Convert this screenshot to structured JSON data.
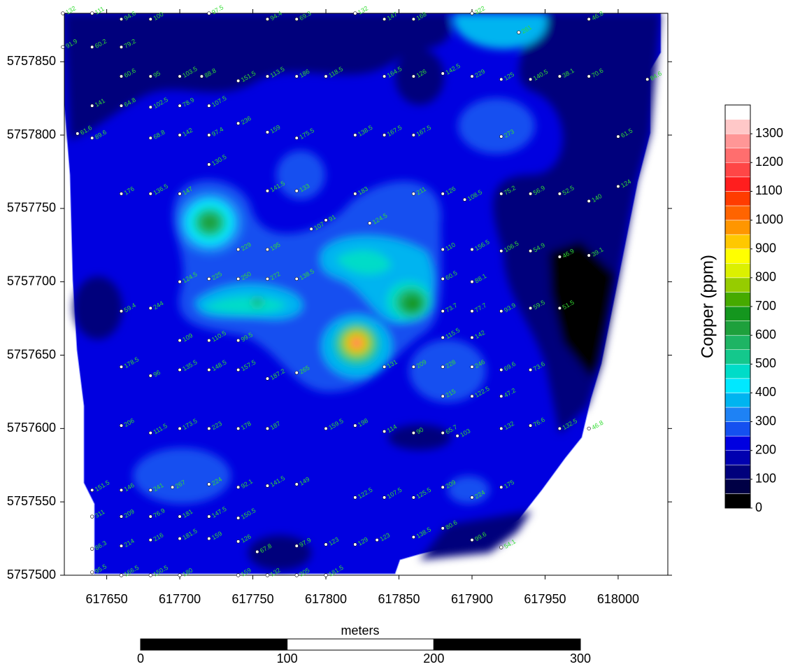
{
  "map": {
    "type": "contour",
    "xlim": [
      617621,
      618034
    ],
    "ylim": [
      5757500,
      5757883
    ],
    "xticks": [
      617650,
      617700,
      617750,
      617800,
      617850,
      617900,
      617950,
      618000
    ],
    "yticks": [
      5757500,
      5757550,
      5757600,
      5757650,
      5757700,
      5757750,
      5757800,
      5757850
    ],
    "colorbar": {
      "label": "Copper (ppm)",
      "lim": [
        0,
        1400
      ],
      "levels": [
        0,
        50,
        100,
        150,
        200,
        250,
        300,
        350,
        400,
        450,
        500,
        550,
        600,
        650,
        700,
        750,
        800,
        850,
        900,
        950,
        1000,
        1050,
        1100,
        1150,
        1200,
        1250,
        1300,
        1350,
        1400
      ],
      "colors": [
        "#000000",
        "#000045",
        "#00007c",
        "#0000b0",
        "#0000e0",
        "#1450f0",
        "#1e82f5",
        "#00b4f0",
        "#00e8ff",
        "#00dcc8",
        "#14c88c",
        "#1eb464",
        "#1ea03c",
        "#14961e",
        "#46aa00",
        "#96cc00",
        "#dcf000",
        "#ffff00",
        "#ffc800",
        "#ff9600",
        "#ff6400",
        "#ff3c00",
        "#ff1e1e",
        "#ff4646",
        "#ff6e6e",
        "#ff9696",
        "#ffc8c8",
        "#ffffff"
      ],
      "ticks": [
        0,
        100,
        200,
        300,
        400,
        500,
        600,
        700,
        800,
        900,
        1000,
        1100,
        1200,
        1300
      ]
    },
    "scale_bar": {
      "label": "meters",
      "lim": [
        0,
        300
      ],
      "ticks": [
        0,
        100,
        200,
        300
      ]
    },
    "samples": [
      {
        "x": 617620,
        "y": 5757883,
        "value": 132
      },
      {
        "x": 617640,
        "y": 5757883,
        "value": 111
      },
      {
        "x": 617720,
        "y": 5757883,
        "value": 97.5
      },
      {
        "x": 617820,
        "y": 5757883,
        "value": 132
      },
      {
        "x": 617900,
        "y": 5757883,
        "value": 322
      },
      {
        "x": 617660,
        "y": 5757879,
        "value": 94.6
      },
      {
        "x": 617680,
        "y": 5757879,
        "value": 100
      },
      {
        "x": 617760,
        "y": 5757879,
        "value": 94.4
      },
      {
        "x": 617780,
        "y": 5757879,
        "value": 69.3
      },
      {
        "x": 617840,
        "y": 5757879,
        "value": 147
      },
      {
        "x": 617860,
        "y": 5757879,
        "value": 168
      },
      {
        "x": 617980,
        "y": 5757879,
        "value": 46.8
      },
      {
        "x": 617932,
        "y": 5757870,
        "value": 261
      },
      {
        "x": 617620,
        "y": 5757860,
        "value": 91.9
      },
      {
        "x": 617640,
        "y": 5757860,
        "value": 60.2
      },
      {
        "x": 617660,
        "y": 5757860,
        "value": 79.2
      },
      {
        "x": 617660,
        "y": 5757840,
        "value": 60.6
      },
      {
        "x": 617680,
        "y": 5757840,
        "value": 95
      },
      {
        "x": 617700,
        "y": 5757840,
        "value": 103.5
      },
      {
        "x": 617715,
        "y": 5757840,
        "value": 88.8
      },
      {
        "x": 617740,
        "y": 5757837,
        "value": 151.5
      },
      {
        "x": 617760,
        "y": 5757840,
        "value": 113.5
      },
      {
        "x": 617780,
        "y": 5757840,
        "value": 186
      },
      {
        "x": 617800,
        "y": 5757840,
        "value": 118.5
      },
      {
        "x": 617840,
        "y": 5757840,
        "value": 164.5
      },
      {
        "x": 617860,
        "y": 5757840,
        "value": 126
      },
      {
        "x": 617880,
        "y": 5757842,
        "value": 142.5
      },
      {
        "x": 617900,
        "y": 5757840,
        "value": 229
      },
      {
        "x": 617920,
        "y": 5757838,
        "value": 125
      },
      {
        "x": 617940,
        "y": 5757838,
        "value": 140.5
      },
      {
        "x": 617960,
        "y": 5757840,
        "value": 38.1
      },
      {
        "x": 617980,
        "y": 5757840,
        "value": 70.6
      },
      {
        "x": 618020,
        "y": 5757838,
        "value": 84.6
      },
      {
        "x": 617640,
        "y": 5757820,
        "value": 141
      },
      {
        "x": 617660,
        "y": 5757820,
        "value": 64.8
      },
      {
        "x": 617680,
        "y": 5757819,
        "value": 102.5
      },
      {
        "x": 617700,
        "y": 5757820,
        "value": 78.9
      },
      {
        "x": 617720,
        "y": 5757820,
        "value": 107.5
      },
      {
        "x": 617740,
        "y": 5757808,
        "value": 236
      },
      {
        "x": 617630,
        "y": 5757801,
        "value": 61.6
      },
      {
        "x": 617640,
        "y": 5757798,
        "value": 89.6
      },
      {
        "x": 617680,
        "y": 5757798,
        "value": 68.8
      },
      {
        "x": 617700,
        "y": 5757800,
        "value": 142
      },
      {
        "x": 617720,
        "y": 5757800,
        "value": 97.4
      },
      {
        "x": 617760,
        "y": 5757802,
        "value": 159
      },
      {
        "x": 617780,
        "y": 5757798,
        "value": 175.5
      },
      {
        "x": 617820,
        "y": 5757800,
        "value": 138.5
      },
      {
        "x": 617840,
        "y": 5757800,
        "value": 167.5
      },
      {
        "x": 617860,
        "y": 5757800,
        "value": 167.5
      },
      {
        "x": 617920,
        "y": 5757799,
        "value": 273
      },
      {
        "x": 618000,
        "y": 5757799,
        "value": 61.5
      },
      {
        "x": 617720,
        "y": 5757780,
        "value": 130.5
      },
      {
        "x": 617660,
        "y": 5757760,
        "value": 176
      },
      {
        "x": 617680,
        "y": 5757760,
        "value": 136.5
      },
      {
        "x": 617700,
        "y": 5757760,
        "value": 147
      },
      {
        "x": 617760,
        "y": 5757762,
        "value": 141.5
      },
      {
        "x": 617780,
        "y": 5757762,
        "value": 133
      },
      {
        "x": 617820,
        "y": 5757760,
        "value": 183
      },
      {
        "x": 617860,
        "y": 5757760,
        "value": 211
      },
      {
        "x": 617880,
        "y": 5757760,
        "value": 126
      },
      {
        "x": 617895,
        "y": 5757756,
        "value": 108.5
      },
      {
        "x": 617920,
        "y": 5757760,
        "value": 75.2
      },
      {
        "x": 617940,
        "y": 5757760,
        "value": 56.9
      },
      {
        "x": 617960,
        "y": 5757760,
        "value": 52.5
      },
      {
        "x": 617980,
        "y": 5757755,
        "value": 140
      },
      {
        "x": 618000,
        "y": 5757765,
        "value": 124
      },
      {
        "x": 617800,
        "y": 5757742,
        "value": 91
      },
      {
        "x": 617830,
        "y": 5757740,
        "value": 124.5
      },
      {
        "x": 617790,
        "y": 5757736,
        "value": 107
      },
      {
        "x": 617740,
        "y": 5757722,
        "value": 229
      },
      {
        "x": 617760,
        "y": 5757722,
        "value": 195
      },
      {
        "x": 617880,
        "y": 5757722,
        "value": 110
      },
      {
        "x": 617900,
        "y": 5757722,
        "value": 156.5
      },
      {
        "x": 617920,
        "y": 5757721,
        "value": 106.5
      },
      {
        "x": 617940,
        "y": 5757721,
        "value": 54.9
      },
      {
        "x": 617960,
        "y": 5757717,
        "value": 46.9
      },
      {
        "x": 617980,
        "y": 5757718,
        "value": 39.1
      },
      {
        "x": 617700,
        "y": 5757700,
        "value": 124.5
      },
      {
        "x": 617720,
        "y": 5757702,
        "value": 225
      },
      {
        "x": 617740,
        "y": 5757702,
        "value": 250
      },
      {
        "x": 617760,
        "y": 5757702,
        "value": 272
      },
      {
        "x": 617780,
        "y": 5757702,
        "value": 138.5
      },
      {
        "x": 617880,
        "y": 5757702,
        "value": 60.5
      },
      {
        "x": 617900,
        "y": 5757700,
        "value": 88.1
      },
      {
        "x": 617660,
        "y": 5757680,
        "value": 59.4
      },
      {
        "x": 617680,
        "y": 5757682,
        "value": 244
      },
      {
        "x": 617880,
        "y": 5757680,
        "value": 73.7
      },
      {
        "x": 617900,
        "y": 5757680,
        "value": 77.7
      },
      {
        "x": 617920,
        "y": 5757680,
        "value": 93.9
      },
      {
        "x": 617940,
        "y": 5757682,
        "value": 59.5
      },
      {
        "x": 617960,
        "y": 5757682,
        "value": 51.5
      },
      {
        "x": 617700,
        "y": 5757660,
        "value": 109
      },
      {
        "x": 617720,
        "y": 5757660,
        "value": 110.5
      },
      {
        "x": 617740,
        "y": 5757660,
        "value": 99.5
      },
      {
        "x": 617880,
        "y": 5757662,
        "value": 115.5
      },
      {
        "x": 617900,
        "y": 5757662,
        "value": 142
      },
      {
        "x": 617660,
        "y": 5757642,
        "value": 178.5
      },
      {
        "x": 617840,
        "y": 5757642,
        "value": 131
      },
      {
        "x": 617860,
        "y": 5757642,
        "value": 209
      },
      {
        "x": 617880,
        "y": 5757642,
        "value": 228
      },
      {
        "x": 617900,
        "y": 5757642,
        "value": 246
      },
      {
        "x": 617920,
        "y": 5757640,
        "value": 69.6
      },
      {
        "x": 617940,
        "y": 5757640,
        "value": 73.6
      },
      {
        "x": 617680,
        "y": 5757636,
        "value": 96
      },
      {
        "x": 617700,
        "y": 5757640,
        "value": 135.5
      },
      {
        "x": 617720,
        "y": 5757640,
        "value": 148.5
      },
      {
        "x": 617740,
        "y": 5757640,
        "value": 157.5
      },
      {
        "x": 617760,
        "y": 5757634,
        "value": 187.2
      },
      {
        "x": 617780,
        "y": 5757638,
        "value": 265
      },
      {
        "x": 617880,
        "y": 5757622,
        "value": 215
      },
      {
        "x": 617900,
        "y": 5757622,
        "value": 122.5
      },
      {
        "x": 617920,
        "y": 5757622,
        "value": 47.2
      },
      {
        "x": 617660,
        "y": 5757602,
        "value": 206
      },
      {
        "x": 617680,
        "y": 5757597,
        "value": 111.5
      },
      {
        "x": 617700,
        "y": 5757600,
        "value": 173.5
      },
      {
        "x": 617720,
        "y": 5757600,
        "value": 223
      },
      {
        "x": 617740,
        "y": 5757600,
        "value": 178
      },
      {
        "x": 617760,
        "y": 5757600,
        "value": 187
      },
      {
        "x": 617800,
        "y": 5757600,
        "value": 159.5
      },
      {
        "x": 617820,
        "y": 5757602,
        "value": 198
      },
      {
        "x": 617840,
        "y": 5757598,
        "value": 114
      },
      {
        "x": 617860,
        "y": 5757597,
        "value": 90
      },
      {
        "x": 617880,
        "y": 5757597,
        "value": 65.7
      },
      {
        "x": 617890,
        "y": 5757595,
        "value": 103
      },
      {
        "x": 617920,
        "y": 5757600,
        "value": 132
      },
      {
        "x": 617940,
        "y": 5757602,
        "value": 76.6
      },
      {
        "x": 617960,
        "y": 5757600,
        "value": 132.5
      },
      {
        "x": 617980,
        "y": 5757600,
        "value": 46.8
      },
      {
        "x": 617640,
        "y": 5757558,
        "value": 151.5
      },
      {
        "x": 617660,
        "y": 5757558,
        "value": 146
      },
      {
        "x": 617680,
        "y": 5757558,
        "value": 241
      },
      {
        "x": 617695,
        "y": 5757560,
        "value": 267
      },
      {
        "x": 617720,
        "y": 5757562,
        "value": 224
      },
      {
        "x": 617740,
        "y": 5757560,
        "value": 92.1
      },
      {
        "x": 617760,
        "y": 5757561,
        "value": 141.5
      },
      {
        "x": 617780,
        "y": 5757562,
        "value": 149
      },
      {
        "x": 617820,
        "y": 5757553,
        "value": 122.5
      },
      {
        "x": 617840,
        "y": 5757553,
        "value": 107.5
      },
      {
        "x": 617860,
        "y": 5757553,
        "value": 125.5
      },
      {
        "x": 617880,
        "y": 5757560,
        "value": 209
      },
      {
        "x": 617900,
        "y": 5757553,
        "value": 224
      },
      {
        "x": 617920,
        "y": 5757560,
        "value": 175
      },
      {
        "x": 617640,
        "y": 5757540,
        "value": 311
      },
      {
        "x": 617660,
        "y": 5757540,
        "value": 209
      },
      {
        "x": 617680,
        "y": 5757540,
        "value": 76.9
      },
      {
        "x": 617700,
        "y": 5757540,
        "value": 181
      },
      {
        "x": 617720,
        "y": 5757540,
        "value": 147.5
      },
      {
        "x": 617740,
        "y": 5757539,
        "value": 150.5
      },
      {
        "x": 617640,
        "y": 5757518,
        "value": 86.3
      },
      {
        "x": 617660,
        "y": 5757520,
        "value": 214
      },
      {
        "x": 617680,
        "y": 5757524,
        "value": 216
      },
      {
        "x": 617700,
        "y": 5757525,
        "value": 181.5
      },
      {
        "x": 617720,
        "y": 5757525,
        "value": 159
      },
      {
        "x": 617740,
        "y": 5757523,
        "value": 126
      },
      {
        "x": 617753,
        "y": 5757516,
        "value": 67.8
      },
      {
        "x": 617780,
        "y": 5757520,
        "value": 97.9
      },
      {
        "x": 617800,
        "y": 5757521,
        "value": 123
      },
      {
        "x": 617820,
        "y": 5757521,
        "value": 129
      },
      {
        "x": 617835,
        "y": 5757524,
        "value": 123
      },
      {
        "x": 617860,
        "y": 5757526,
        "value": 138.5
      },
      {
        "x": 617880,
        "y": 5757532,
        "value": 80.6
      },
      {
        "x": 617900,
        "y": 5757524,
        "value": 99.6
      },
      {
        "x": 617920,
        "y": 5757519,
        "value": 54.1
      },
      {
        "x": 617640,
        "y": 5757502,
        "value": 95.5
      },
      {
        "x": 617660,
        "y": 5757500,
        "value": 166.5
      },
      {
        "x": 617680,
        "y": 5757500,
        "value": 150.5
      },
      {
        "x": 617700,
        "y": 5757500,
        "value": 180
      },
      {
        "x": 617740,
        "y": 5757500,
        "value": 159
      },
      {
        "x": 617760,
        "y": 5757500,
        "value": 132
      },
      {
        "x": 617780,
        "y": 5757500,
        "value": 205
      },
      {
        "x": 617800,
        "y": 5757500,
        "value": 181.5
      }
    ]
  }
}
